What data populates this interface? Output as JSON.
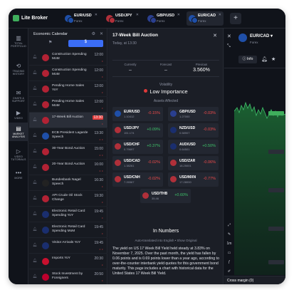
{
  "app": {
    "name": "Lite Broker"
  },
  "tabs": [
    {
      "symbol": "EUR/USD",
      "sub": "Forex",
      "c1": "#1f4fa8",
      "active": false
    },
    {
      "symbol": "USD/JPY",
      "sub": "Forex",
      "c1": "#b0303a",
      "active": false
    },
    {
      "symbol": "GBP/USD",
      "sub": "Forex",
      "c1": "#2a3f8f",
      "active": false
    },
    {
      "symbol": "EUR/CAD",
      "sub": "Forex",
      "c1": "#1f4fa8",
      "active": true
    }
  ],
  "add_tab": "+",
  "nav": [
    {
      "label": "TOTAL PORTFOLIO",
      "icon": "▥"
    },
    {
      "label": "TRADING HISTORY",
      "icon": "⟲"
    },
    {
      "label": "CHATS & SUPPORT",
      "icon": "✉"
    },
    {
      "label": "VIDEO",
      "icon": "▶"
    },
    {
      "label": "MARKET ANALYSIS",
      "icon": "▤"
    },
    {
      "label": "VIDEO TUTORIALS",
      "icon": "▷"
    },
    {
      "label": "MORE",
      "icon": "•••"
    }
  ],
  "calendar": {
    "title": "Economic Calendar",
    "tab_icon_1": "⚑",
    "tab_icon_2": "$",
    "events": [
      {
        "name": "Construction Spending MoM",
        "time": "12:00",
        "imp": "•",
        "color": "#b22234"
      },
      {
        "name": "Construction Spending MoM",
        "time": "12:00",
        "imp": "•",
        "color": "#b22234"
      },
      {
        "name": "Pending Home Sales YoY",
        "time": "12:00",
        "imp": "•",
        "color": "#b22234"
      },
      {
        "name": "Pending Home Sales MoM",
        "time": "12:00",
        "imp": "•",
        "color": "#b22234"
      },
      {
        "name": "17-Week Bill Auction",
        "time": "13:30",
        "imp": "•",
        "color": "#b22234",
        "selected": true
      },
      {
        "name": "ECB President Lagarde Speech",
        "time": "13:30",
        "imp": "• •",
        "color": "#1f4fa8"
      },
      {
        "name": "30-Year Bond Auction",
        "time": "15:00",
        "imp": "• •",
        "color": "#b22234"
      },
      {
        "name": "20-Year Bond Auction",
        "time": "16:00",
        "imp": "• •",
        "color": "#b22234"
      },
      {
        "name": "Bundesbank Nagel Speech",
        "time": "16:30",
        "imp": "•",
        "color": "#222222"
      },
      {
        "name": "API Crude Oil Stock Change",
        "time": "19:30",
        "imp": "•",
        "color": "#b22234"
      },
      {
        "name": "Electronic Retail Card Spending YoY",
        "time": "19:45",
        "imp": "•",
        "color": "#1a2e6e"
      },
      {
        "name": "Electronic Retail Card Spending MoM",
        "time": "19:45",
        "imp": "•",
        "color": "#1a2e6e"
      },
      {
        "name": "Visitor Arrivals YoY",
        "time": "19:45",
        "imp": "• •",
        "color": "#1a2e6e"
      },
      {
        "name": "Imports YoY",
        "time": "20:30",
        "imp": "•",
        "color": "#c8102e"
      },
      {
        "name": "Stock Investment by Foreigners",
        "time": "20:50",
        "imp": "•",
        "color": "#bc002d"
      }
    ]
  },
  "detail": {
    "title": "17-Week Bill Auction",
    "date": "Today, at 13:30",
    "currently_label": "Currently",
    "currently_value": "–",
    "forecast_label": "Forecast",
    "forecast_value": "–",
    "previous_label": "Previous",
    "previous_value": "3.560%",
    "volatility_label": "Volatility",
    "volatility_value": "Low Importance",
    "assets_label": "Assets Affected",
    "assets": [
      {
        "symbol": "EUR/USD",
        "price": "1.10412",
        "change": "-0.15%",
        "dir": "neg",
        "color": "#1f4fa8"
      },
      {
        "symbol": "GBP/USD",
        "price": "1.27000",
        "change": "-0.03%",
        "dir": "neg",
        "color": "#2a3f8f"
      },
      {
        "symbol": "USD/JPY",
        "price": "151.174",
        "change": "+0.09%",
        "dir": "pos",
        "color": "#b0303a"
      },
      {
        "symbol": "NZD/USD",
        "price": "0.58907",
        "change": "-0.03%",
        "dir": "neg",
        "color": "#1a2e6e"
      },
      {
        "symbol": "USD/CHF",
        "price": "0.79697",
        "change": "+0.37%",
        "dir": "pos",
        "color": "#b0303a"
      },
      {
        "symbol": "AUD/USD",
        "price": "0.64501",
        "change": "+0.50%",
        "dir": "pos",
        "color": "#1a2e6e"
      },
      {
        "symbol": "USD/CAD",
        "price": "1.38261",
        "change": "-0.02%",
        "dir": "neg",
        "color": "#b0303a"
      },
      {
        "symbol": "USD/ZAR",
        "price": "18.25001",
        "change": "-0.06%",
        "dir": "neg",
        "color": "#b0303a"
      },
      {
        "symbol": "USD/CNH",
        "price": "7.26567",
        "change": "-0.02%",
        "dir": "neg",
        "color": "#b0303a"
      },
      {
        "symbol": "USD/MXN",
        "price": "17.28000",
        "change": "-0.77%",
        "dir": "neg",
        "color": "#b0303a"
      },
      {
        "symbol": "USD/THB",
        "price": "35.46",
        "change": "+0.60%",
        "dir": "pos",
        "color": "#b0303a"
      }
    ],
    "in_numbers_title": "In Numbers",
    "auto_translated": "Auto-translated into English  •  Show Original",
    "description": "The yield on US 17 Week Bill Yield held steady at 3.83% on November 7, 2025. Over the past month, the yield has fallen by 0.06 points and is 0.69 points lower than a year ago, according to over-the-counter interbank yield quotes for this government bond maturity. This page includes a chart with historical data for the United States 17 Week Bill Yield."
  },
  "chart_panel": {
    "symbol": "EUR/CAD",
    "sub": "Forex",
    "flag_color": "#1f4fa8",
    "info_label": "Info",
    "tools": [
      "⤢",
      "✎",
      "1m",
      "▭",
      "ƒ",
      "✐",
      "3h"
    ],
    "cross_margin": "Cross margin (0)"
  }
}
